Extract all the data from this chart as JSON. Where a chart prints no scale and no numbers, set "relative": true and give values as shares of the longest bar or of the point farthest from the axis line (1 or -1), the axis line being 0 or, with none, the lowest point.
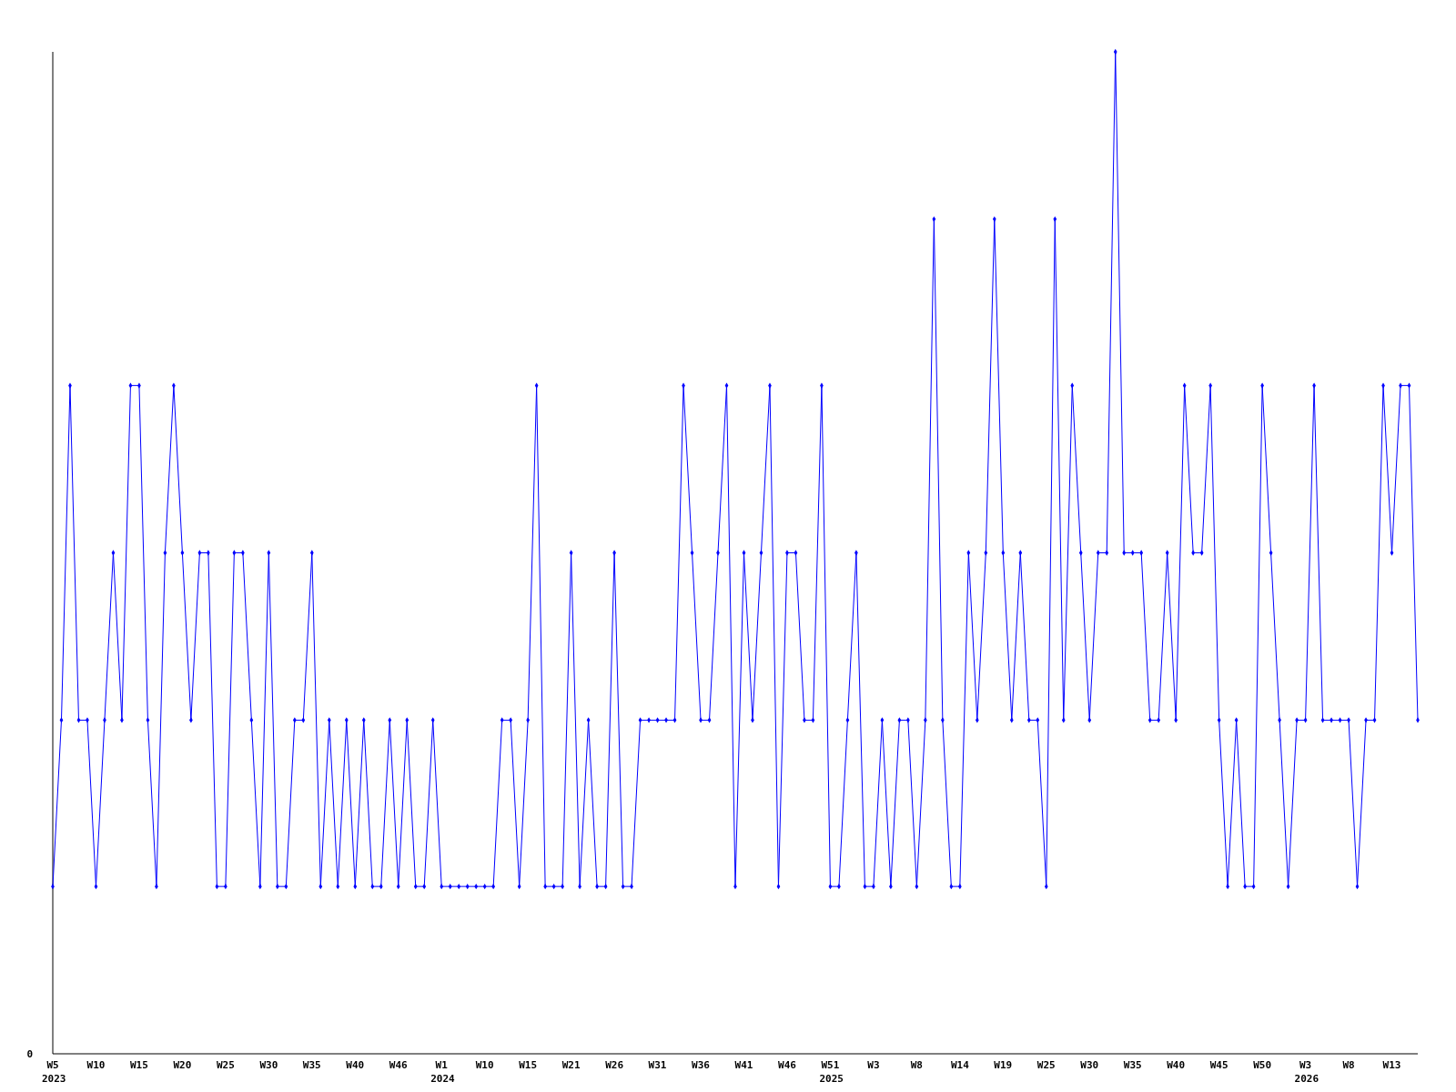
{
  "chart_data": {
    "type": "line",
    "relative": true,
    "annotations": [
      "0"
    ],
    "marker": "diamond",
    "line_style": "solid",
    "categories": [
      "W5\n2023",
      null,
      null,
      null,
      null,
      "W10",
      null,
      null,
      null,
      null,
      "W15",
      null,
      null,
      null,
      null,
      "W20",
      null,
      null,
      null,
      null,
      "W25",
      null,
      null,
      null,
      null,
      "W30",
      null,
      null,
      null,
      null,
      "W35",
      null,
      null,
      null,
      null,
      "W40",
      null,
      null,
      null,
      null,
      "W46",
      null,
      null,
      null,
      null,
      "W1\n2024",
      null,
      null,
      null,
      null,
      "W10",
      null,
      null,
      null,
      null,
      "W15",
      null,
      null,
      null,
      null,
      "W21",
      null,
      null,
      null,
      null,
      "W26",
      null,
      null,
      null,
      null,
      "W31",
      null,
      null,
      null,
      null,
      "W36",
      null,
      null,
      null,
      null,
      "W41",
      null,
      null,
      null,
      null,
      "W46",
      null,
      null,
      null,
      null,
      "W51\n2025",
      null,
      null,
      null,
      null,
      "W3",
      null,
      null,
      null,
      null,
      "W8",
      null,
      null,
      null,
      null,
      "W14",
      null,
      null,
      null,
      null,
      "W19",
      null,
      null,
      null,
      null,
      "W25",
      null,
      null,
      null,
      null,
      "W30",
      null,
      null,
      null,
      null,
      "W35",
      null,
      null,
      null,
      null,
      "W40",
      null,
      null,
      null,
      null,
      "W45",
      null,
      null,
      null,
      null,
      "W50",
      null,
      null,
      null,
      null,
      "W3\n2026",
      null,
      null,
      null,
      null,
      "W8",
      null,
      null,
      null,
      null,
      "W13",
      null,
      null,
      null
    ],
    "series": [
      {
        "color": "#0000ff",
        "values": [
          0.167,
          0.333,
          0.667,
          0.333,
          0.333,
          0.167,
          0.333,
          0.5,
          0.333,
          0.667,
          0.667,
          0.333,
          0.167,
          0.5,
          0.667,
          0.5,
          0.333,
          0.5,
          0.5,
          0.167,
          0.167,
          0.5,
          0.5,
          0.333,
          0.167,
          0.5,
          0.167,
          0.167,
          0.333,
          0.333,
          0.5,
          0.167,
          0.333,
          0.167,
          0.333,
          0.167,
          0.333,
          0.167,
          0.167,
          0.333,
          0.167,
          0.333,
          0.167,
          0.167,
          0.333,
          0.167,
          0.167,
          0.167,
          0.167,
          0.167,
          0.167,
          0.167,
          0.333,
          0.333,
          0.167,
          0.333,
          0.667,
          0.167,
          0.167,
          0.167,
          0.5,
          0.167,
          0.333,
          0.167,
          0.167,
          0.5,
          0.167,
          0.167,
          0.333,
          0.333,
          0.333,
          0.333,
          0.333,
          0.667,
          0.5,
          0.333,
          0.333,
          0.5,
          0.667,
          0.167,
          0.5,
          0.333,
          0.5,
          0.667,
          0.167,
          0.5,
          0.5,
          0.333,
          0.333,
          0.667,
          0.167,
          0.167,
          0.333,
          0.5,
          0.167,
          0.167,
          0.333,
          0.167,
          0.333,
          0.333,
          0.167,
          0.333,
          0.833,
          0.333,
          0.167,
          0.167,
          0.5,
          0.333,
          0.5,
          0.833,
          0.5,
          0.333,
          0.5,
          0.333,
          0.333,
          0.167,
          0.833,
          0.333,
          0.667,
          0.5,
          0.333,
          0.5,
          0.5,
          1,
          0.5,
          0.5,
          0.5,
          0.333,
          0.333,
          0.5,
          0.333,
          0.667,
          0.5,
          0.5,
          0.667,
          0.333,
          0.167,
          0.333,
          0.167,
          0.167,
          0.667,
          0.5,
          0.333,
          0.167,
          0.333,
          0.333,
          0.667,
          0.333,
          0.333,
          0.333,
          0.333,
          0.167,
          0.333,
          0.333,
          0.667,
          0.5,
          0.667,
          0.667,
          0.333
        ]
      }
    ]
  }
}
